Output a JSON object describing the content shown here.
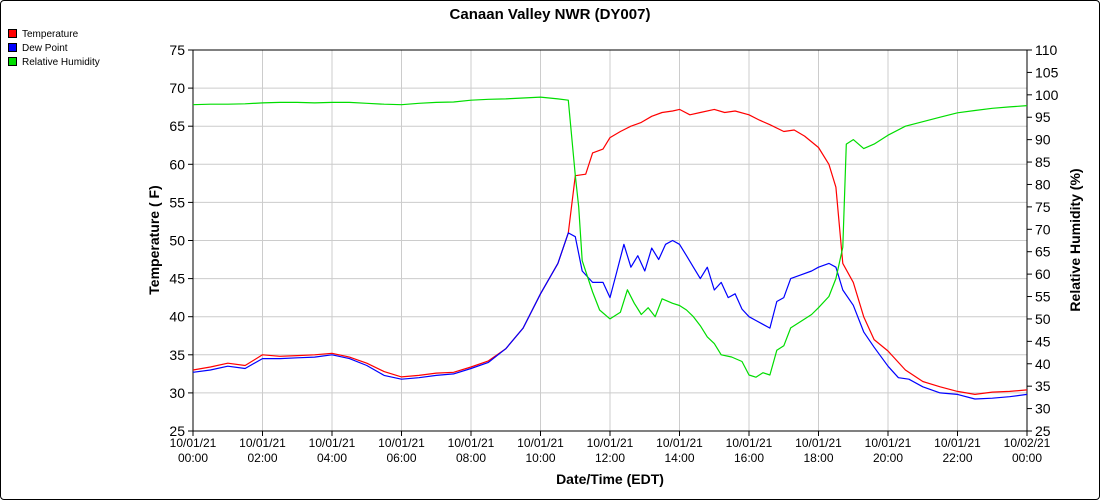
{
  "chart_data": {
    "type": "line",
    "title": "Canaan Valley NWR (DY007)",
    "xlabel": "Date/Time (EDT)",
    "ylabel_left": "Temperature ( F)",
    "ylabel_right": "Relative Humidity (%)",
    "ylim_left": [
      25,
      75
    ],
    "ylim_right": [
      25,
      110
    ],
    "yticks_left": [
      25,
      30,
      35,
      40,
      45,
      50,
      55,
      60,
      65,
      70,
      75
    ],
    "yticks_right": [
      25,
      30,
      35,
      40,
      45,
      50,
      55,
      60,
      65,
      70,
      75,
      80,
      85,
      90,
      95,
      100,
      105,
      110
    ],
    "xlim_hours": [
      0,
      24
    ],
    "xticks": [
      {
        "hour": 0,
        "date": "10/01/21",
        "time": "00:00"
      },
      {
        "hour": 2,
        "date": "10/01/21",
        "time": "02:00"
      },
      {
        "hour": 4,
        "date": "10/01/21",
        "time": "04:00"
      },
      {
        "hour": 6,
        "date": "10/01/21",
        "time": "06:00"
      },
      {
        "hour": 8,
        "date": "10/01/21",
        "time": "08:00"
      },
      {
        "hour": 10,
        "date": "10/01/21",
        "time": "10:00"
      },
      {
        "hour": 12,
        "date": "10/01/21",
        "time": "12:00"
      },
      {
        "hour": 14,
        "date": "10/01/21",
        "time": "14:00"
      },
      {
        "hour": 16,
        "date": "10/01/21",
        "time": "16:00"
      },
      {
        "hour": 18,
        "date": "10/01/21",
        "time": "18:00"
      },
      {
        "hour": 20,
        "date": "10/01/21",
        "time": "20:00"
      },
      {
        "hour": 22,
        "date": "10/01/21",
        "time": "22:00"
      },
      {
        "hour": 24,
        "date": "10/02/21",
        "time": "00:00"
      }
    ],
    "grid": true,
    "legend_position": "top-left",
    "series": [
      {
        "name": "Temperature",
        "axis": "left",
        "color": "#ff0000",
        "points": [
          [
            0,
            33.0
          ],
          [
            0.5,
            33.4
          ],
          [
            1.0,
            33.9
          ],
          [
            1.5,
            33.6
          ],
          [
            2.0,
            35.0
          ],
          [
            2.5,
            34.8
          ],
          [
            3.0,
            34.9
          ],
          [
            3.5,
            35.0
          ],
          [
            4.0,
            35.2
          ],
          [
            4.5,
            34.7
          ],
          [
            5.0,
            33.9
          ],
          [
            5.5,
            32.8
          ],
          [
            6.0,
            32.1
          ],
          [
            6.5,
            32.3
          ],
          [
            7.0,
            32.6
          ],
          [
            7.5,
            32.7
          ],
          [
            8.0,
            33.4
          ],
          [
            8.5,
            34.2
          ],
          [
            9.0,
            35.8
          ],
          [
            9.5,
            38.5
          ],
          [
            10.0,
            43.0
          ],
          [
            10.5,
            47.0
          ],
          [
            10.8,
            51.0
          ],
          [
            11.0,
            58.5
          ],
          [
            11.3,
            58.7
          ],
          [
            11.5,
            61.5
          ],
          [
            11.8,
            62.0
          ],
          [
            12.0,
            63.5
          ],
          [
            12.3,
            64.3
          ],
          [
            12.6,
            65.0
          ],
          [
            12.9,
            65.5
          ],
          [
            13.2,
            66.3
          ],
          [
            13.5,
            66.8
          ],
          [
            13.8,
            67.0
          ],
          [
            14.0,
            67.2
          ],
          [
            14.3,
            66.5
          ],
          [
            14.6,
            66.8
          ],
          [
            15.0,
            67.2
          ],
          [
            15.3,
            66.8
          ],
          [
            15.6,
            67.0
          ],
          [
            16.0,
            66.5
          ],
          [
            16.3,
            65.8
          ],
          [
            16.6,
            65.2
          ],
          [
            17.0,
            64.3
          ],
          [
            17.3,
            64.5
          ],
          [
            17.6,
            63.7
          ],
          [
            18.0,
            62.2
          ],
          [
            18.3,
            60.0
          ],
          [
            18.5,
            57.0
          ],
          [
            18.7,
            47.0
          ],
          [
            19.0,
            44.5
          ],
          [
            19.3,
            40.0
          ],
          [
            19.6,
            37.0
          ],
          [
            20.0,
            35.5
          ],
          [
            20.5,
            33.0
          ],
          [
            21.0,
            31.5
          ],
          [
            21.5,
            30.8
          ],
          [
            22.0,
            30.2
          ],
          [
            22.5,
            29.8
          ],
          [
            23.0,
            30.1
          ],
          [
            23.5,
            30.2
          ],
          [
            24.0,
            30.4
          ]
        ]
      },
      {
        "name": "Dew Point",
        "axis": "left",
        "color": "#0000ff",
        "points": [
          [
            0,
            32.7
          ],
          [
            0.5,
            33.0
          ],
          [
            1.0,
            33.5
          ],
          [
            1.5,
            33.2
          ],
          [
            2.0,
            34.5
          ],
          [
            2.5,
            34.5
          ],
          [
            3.0,
            34.6
          ],
          [
            3.5,
            34.7
          ],
          [
            4.0,
            35.0
          ],
          [
            4.5,
            34.5
          ],
          [
            5.0,
            33.6
          ],
          [
            5.5,
            32.3
          ],
          [
            6.0,
            31.8
          ],
          [
            6.5,
            32.0
          ],
          [
            7.0,
            32.3
          ],
          [
            7.5,
            32.5
          ],
          [
            8.0,
            33.2
          ],
          [
            8.5,
            34.0
          ],
          [
            9.0,
            35.8
          ],
          [
            9.5,
            38.5
          ],
          [
            10.0,
            43.0
          ],
          [
            10.5,
            47.0
          ],
          [
            10.8,
            51.0
          ],
          [
            11.0,
            50.5
          ],
          [
            11.2,
            46.0
          ],
          [
            11.5,
            44.5
          ],
          [
            11.8,
            44.5
          ],
          [
            12.0,
            42.5
          ],
          [
            12.2,
            46.0
          ],
          [
            12.4,
            49.5
          ],
          [
            12.6,
            46.5
          ],
          [
            12.8,
            48.0
          ],
          [
            13.0,
            46.0
          ],
          [
            13.2,
            49.0
          ],
          [
            13.4,
            47.5
          ],
          [
            13.6,
            49.5
          ],
          [
            13.8,
            50.0
          ],
          [
            14.0,
            49.5
          ],
          [
            14.2,
            48.0
          ],
          [
            14.4,
            46.5
          ],
          [
            14.6,
            45.0
          ],
          [
            14.8,
            46.5
          ],
          [
            15.0,
            43.5
          ],
          [
            15.2,
            44.5
          ],
          [
            15.4,
            42.5
          ],
          [
            15.6,
            43.0
          ],
          [
            15.8,
            41.0
          ],
          [
            16.0,
            40.0
          ],
          [
            16.2,
            39.5
          ],
          [
            16.4,
            39.0
          ],
          [
            16.6,
            38.5
          ],
          [
            16.8,
            42.0
          ],
          [
            17.0,
            42.5
          ],
          [
            17.2,
            45.0
          ],
          [
            17.5,
            45.5
          ],
          [
            17.8,
            46.0
          ],
          [
            18.0,
            46.5
          ],
          [
            18.3,
            47.0
          ],
          [
            18.5,
            46.5
          ],
          [
            18.7,
            43.5
          ],
          [
            19.0,
            41.5
          ],
          [
            19.3,
            38.0
          ],
          [
            19.6,
            36.0
          ],
          [
            20.0,
            33.5
          ],
          [
            20.3,
            32.0
          ],
          [
            20.6,
            31.8
          ],
          [
            21.0,
            30.8
          ],
          [
            21.5,
            30.0
          ],
          [
            22.0,
            29.8
          ],
          [
            22.5,
            29.2
          ],
          [
            23.0,
            29.3
          ],
          [
            23.5,
            29.5
          ],
          [
            24.0,
            29.8
          ]
        ]
      },
      {
        "name": "Relative Humidity",
        "axis": "right",
        "color": "#00dd00",
        "points": [
          [
            0,
            97.8
          ],
          [
            0.5,
            97.9
          ],
          [
            1.0,
            97.9
          ],
          [
            1.5,
            98.0
          ],
          [
            2.0,
            98.2
          ],
          [
            2.5,
            98.3
          ],
          [
            3.0,
            98.3
          ],
          [
            3.5,
            98.2
          ],
          [
            4.0,
            98.3
          ],
          [
            4.5,
            98.3
          ],
          [
            5.0,
            98.1
          ],
          [
            5.5,
            97.9
          ],
          [
            6.0,
            97.8
          ],
          [
            6.5,
            98.1
          ],
          [
            7.0,
            98.3
          ],
          [
            7.5,
            98.4
          ],
          [
            8.0,
            98.8
          ],
          [
            8.5,
            99.0
          ],
          [
            9.0,
            99.1
          ],
          [
            9.5,
            99.3
          ],
          [
            10.0,
            99.5
          ],
          [
            10.5,
            99.1
          ],
          [
            10.8,
            98.8
          ],
          [
            11.0,
            82.0
          ],
          [
            11.1,
            75.0
          ],
          [
            11.2,
            63.0
          ],
          [
            11.5,
            56.0
          ],
          [
            11.7,
            52.0
          ],
          [
            12.0,
            50.0
          ],
          [
            12.3,
            51.5
          ],
          [
            12.5,
            56.5
          ],
          [
            12.7,
            53.5
          ],
          [
            12.9,
            51.0
          ],
          [
            13.1,
            52.5
          ],
          [
            13.3,
            50.5
          ],
          [
            13.5,
            54.5
          ],
          [
            13.8,
            53.5
          ],
          [
            14.0,
            53.0
          ],
          [
            14.2,
            52.0
          ],
          [
            14.4,
            50.5
          ],
          [
            14.6,
            48.5
          ],
          [
            14.8,
            46.0
          ],
          [
            15.0,
            44.5
          ],
          [
            15.2,
            42.0
          ],
          [
            15.5,
            41.5
          ],
          [
            15.8,
            40.5
          ],
          [
            16.0,
            37.5
          ],
          [
            16.2,
            37.0
          ],
          [
            16.4,
            38.0
          ],
          [
            16.6,
            37.5
          ],
          [
            16.8,
            43.0
          ],
          [
            17.0,
            44.0
          ],
          [
            17.2,
            48.0
          ],
          [
            17.5,
            49.5
          ],
          [
            17.8,
            51.0
          ],
          [
            18.0,
            52.5
          ],
          [
            18.3,
            55.0
          ],
          [
            18.5,
            59.0
          ],
          [
            18.7,
            66.0
          ],
          [
            18.8,
            89.0
          ],
          [
            19.0,
            90.0
          ],
          [
            19.3,
            88.0
          ],
          [
            19.6,
            89.0
          ],
          [
            20.0,
            91.0
          ],
          [
            20.5,
            93.0
          ],
          [
            21.0,
            94.0
          ],
          [
            21.5,
            95.0
          ],
          [
            22.0,
            96.0
          ],
          [
            22.5,
            96.5
          ],
          [
            23.0,
            97.0
          ],
          [
            23.5,
            97.3
          ],
          [
            24.0,
            97.6
          ]
        ]
      }
    ]
  }
}
